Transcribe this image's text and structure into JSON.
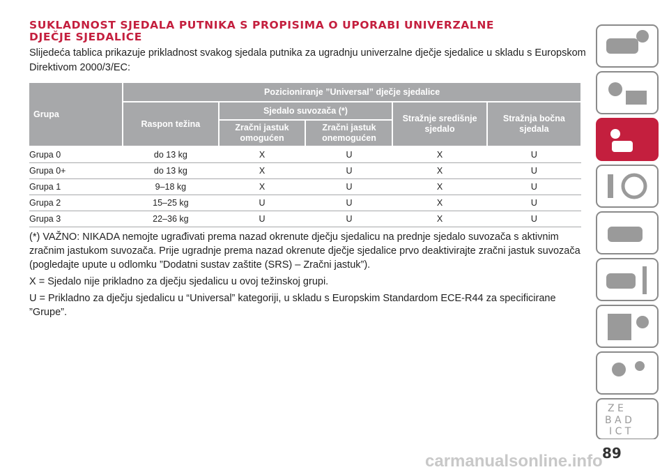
{
  "header": {
    "title_lines": [
      "SUKLADNOST SJEDALA PUTNIKA S PROPISIMA O UPORABI UNIVERZALNE",
      "DJEČJE SJEDALICE"
    ],
    "intro": "Slijedeća tablica prikazuje prikladnost svakog sjedala putnika za ugradnju univerzalne dječje sjedalice u skladu s Europskom Direktivom 2000/3/EC:"
  },
  "table": {
    "header": {
      "group": "Grupa",
      "weight": "Raspon težina",
      "positioning": "Pozicioniranje ”Universal” dječje sjedalice",
      "passenger_seat": "Sjedalo suvozača (*)",
      "airbag_on": "Zračni jastuk omogućen",
      "airbag_off": "Zračni jastuk onemogućen",
      "rear_center": "Stražnje središnje sjedalo",
      "rear_side": "Stražnja bočna sjedala"
    },
    "rows": [
      [
        "Grupa 0",
        "do 13 kg",
        "X",
        "U",
        "X",
        "U"
      ],
      [
        "Grupa 0+",
        "do 13 kg",
        "X",
        "U",
        "X",
        "U"
      ],
      [
        "Grupa 1",
        "9–18 kg",
        "X",
        "U",
        "X",
        "U"
      ],
      [
        "Grupa 2",
        "15–25 kg",
        "U",
        "U",
        "X",
        "U"
      ],
      [
        "Grupa 3",
        "22–36 kg",
        "U",
        "U",
        "X",
        "U"
      ]
    ]
  },
  "notes": [
    "(*) VAŽNO: NIKADA nemojte ugrađivati prema nazad okrenute dječju sjedalicu na prednje sjedalo suvozača s aktivnim zračnim jastukom suvozača. Prije ugradnje prema nazad okrenute dječje sjedalice prvo deaktivirajte zračni jastuk suvozača (pogledajte upute u odlomku ”Dodatni sustav zaštite (SRS) – Zračni jastuk”).",
    "X = Sjedalo nije prikladno za dječju sjedalicu u ovoj težinskoj grupi.",
    "U = Prikladno za dječju sjedalicu u “Universal” kategoriji, u skladu s Europskim Standardom ECE-R44 za specificirane ”Grupe”."
  ],
  "footer": {
    "page_number": "89",
    "watermark": "carmanualsonline.info"
  }
}
